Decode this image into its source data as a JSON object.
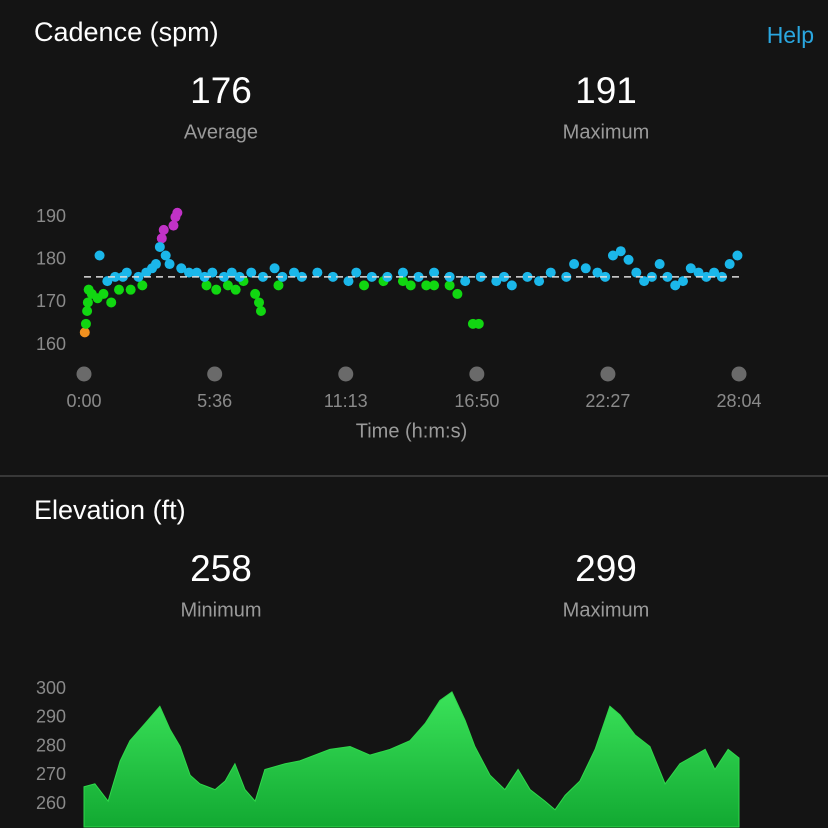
{
  "help_link": "Help",
  "chart_data": [
    {
      "type": "scatter",
      "title": "Cadence (spm)",
      "stats": [
        {
          "value": 176,
          "label": "Average"
        },
        {
          "value": 191,
          "label": "Maximum"
        }
      ],
      "x_label": "Time (h:m:s)",
      "xlim": [
        0,
        1684
      ],
      "xticks": [
        {
          "value": 0,
          "label": "0:00"
        },
        {
          "value": 336,
          "label": "5:36"
        },
        {
          "value": 673,
          "label": "11:13"
        },
        {
          "value": 1010,
          "label": "16:50"
        },
        {
          "value": 1347,
          "label": "22:27"
        },
        {
          "value": 1684,
          "label": "28:04"
        }
      ],
      "ylim": [
        157,
        192
      ],
      "yticks": [
        160,
        170,
        180,
        190
      ],
      "series": [
        {
          "color": "#f0901f",
          "x": [
            2
          ],
          "values": [
            163
          ]
        },
        {
          "color": "#11d711",
          "x": [
            5,
            8,
            10,
            12,
            20,
            35,
            50,
            70,
            90,
            120,
            150,
            315,
            340,
            370,
            390,
            410,
            440,
            450,
            455,
            500,
            720,
            770,
            820,
            840,
            880,
            900,
            940,
            960,
            1000,
            1015
          ],
          "values": [
            165,
            168,
            170,
            173,
            172,
            171,
            172,
            170,
            173,
            173,
            174,
            174,
            173,
            174,
            173,
            175,
            172,
            170,
            168,
            174,
            174,
            175,
            175,
            174,
            174,
            174,
            174,
            172,
            165,
            165
          ]
        },
        {
          "color": "#c132c7",
          "x": [
            200,
            205,
            230,
            235,
            240
          ],
          "values": [
            185,
            187,
            188,
            190,
            191
          ]
        },
        {
          "color": "#1bb7ea",
          "x": [
            40,
            60,
            80,
            100,
            110,
            140,
            160,
            175,
            185,
            195,
            210,
            220,
            250,
            270,
            290,
            310,
            330,
            360,
            380,
            400,
            430,
            460,
            490,
            510,
            540,
            560,
            600,
            640,
            680,
            700,
            740,
            780,
            820,
            860,
            900,
            940,
            980,
            1020,
            1060,
            1080,
            1100,
            1140,
            1170,
            1200,
            1240,
            1260,
            1290,
            1320,
            1340,
            1360,
            1380,
            1400,
            1420,
            1440,
            1460,
            1480,
            1500,
            1520,
            1540,
            1560,
            1580,
            1600,
            1620,
            1640,
            1660,
            1680
          ],
          "values": [
            181,
            175,
            176,
            176,
            177,
            176,
            177,
            178,
            179,
            183,
            181,
            179,
            178,
            177,
            177,
            176,
            177,
            176,
            177,
            176,
            177,
            176,
            178,
            176,
            177,
            176,
            177,
            176,
            175,
            177,
            176,
            176,
            177,
            176,
            177,
            176,
            175,
            176,
            175,
            176,
            174,
            176,
            175,
            177,
            176,
            179,
            178,
            177,
            176,
            181,
            182,
            180,
            177,
            175,
            176,
            179,
            176,
            174,
            175,
            178,
            177,
            176,
            177,
            176,
            179,
            181
          ]
        }
      ]
    },
    {
      "type": "area",
      "title": "Elevation (ft)",
      "stats": [
        {
          "value": 258,
          "label": "Minimum"
        },
        {
          "value": 299,
          "label": "Maximum"
        }
      ],
      "xlim": [
        0,
        1684
      ],
      "ylim": [
        252,
        300
      ],
      "yticks": [
        260,
        270,
        280,
        290,
        300
      ],
      "color": "#2fd94b",
      "x": [
        0,
        28,
        62,
        93,
        118,
        157,
        195,
        221,
        247,
        273,
        298,
        337,
        363,
        388,
        414,
        440,
        465,
        517,
        555,
        632,
        684,
        735,
        787,
        838,
        877,
        915,
        946,
        980,
        1005,
        1044,
        1082,
        1116,
        1147,
        1185,
        1211,
        1237,
        1275,
        1314,
        1352,
        1378,
        1417,
        1455,
        1494,
        1532,
        1571,
        1597,
        1622,
        1656,
        1684
      ],
      "values": [
        266,
        267,
        261,
        275,
        282,
        288,
        294,
        286,
        280,
        270,
        267,
        265,
        268,
        274,
        265,
        261,
        272,
        274,
        275,
        279,
        280,
        277,
        279,
        282,
        288,
        296,
        299,
        289,
        280,
        270,
        265,
        272,
        265,
        261,
        258,
        263,
        268,
        279,
        294,
        291,
        284,
        280,
        267,
        274,
        277,
        279,
        272,
        279,
        276
      ]
    }
  ]
}
